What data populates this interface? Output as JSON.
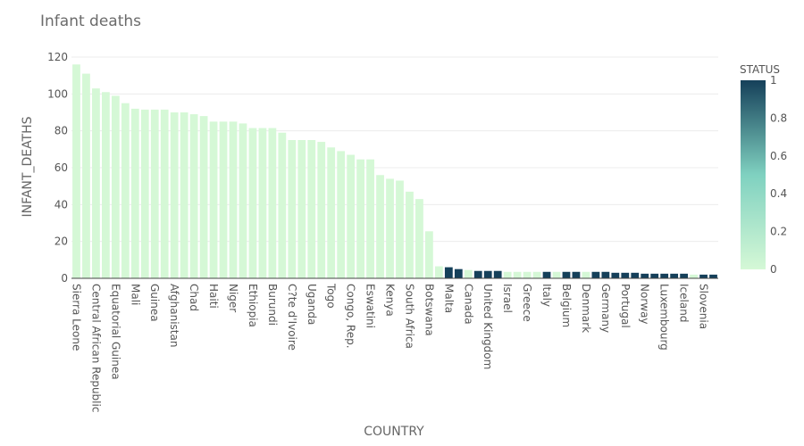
{
  "chart_data": {
    "type": "bar",
    "title": "Infant deaths",
    "xlabel": "COUNTRY",
    "ylabel": "INFANT_DEATHS",
    "ylim": [
      0,
      120
    ],
    "y_ticks": [
      0,
      20,
      40,
      60,
      80,
      100,
      120
    ],
    "grid": true,
    "colorbar": {
      "title": "STATUS",
      "range": [
        0,
        1
      ],
      "ticks": [
        "0",
        "0.2",
        "0.4",
        "0.6",
        "0.8",
        "1"
      ],
      "color_low": "#d5f8d6",
      "color_mid": "#7fd1c0",
      "color_high": "#15405a",
      "placement": "right"
    },
    "tick_labels": [
      "Sierra Leone",
      "Central African Republic",
      "Equatorial Guinea",
      "Mali",
      "Guinea",
      "Afghanistan",
      "Chad",
      "Haiti",
      "Niger",
      "Ethiopia",
      "Burundi",
      "C?te d'Ivoire",
      "Uganda",
      "Togo",
      "Congo, Rep.",
      "Eswatini",
      "Kenya",
      "South Africa",
      "Botswana",
      "Malta",
      "Canada",
      "United Kingdom",
      "Israel",
      "Greece",
      "Italy",
      "Belgium",
      "Denmark",
      "Germany",
      "Portugal",
      "Norway",
      "Luxembourg",
      "Iceland",
      "Slovenia"
    ],
    "tick_every": 2,
    "bar_count": 66,
    "values": [
      116,
      111,
      103,
      101,
      99,
      95,
      92,
      91.5,
      91.5,
      91.5,
      90,
      90,
      89,
      88,
      85,
      85,
      85,
      84,
      81.5,
      81.5,
      81.5,
      79,
      75,
      75,
      75,
      74,
      71,
      69,
      67,
      64.5,
      64.5,
      56,
      54,
      53,
      47,
      43,
      25.5,
      6.5,
      6,
      5,
      4.5,
      4,
      4,
      4,
      3.5,
      3.5,
      3.5,
      3.5,
      3.5,
      3.5,
      3.5,
      3.5,
      3.5,
      3.5,
      3.5,
      3,
      3,
      3,
      2.5,
      2.5,
      2.5,
      2.5,
      2.5,
      2,
      2,
      2
    ],
    "status": [
      0,
      0,
      0,
      0,
      0,
      0,
      0,
      0,
      0,
      0,
      0,
      0,
      0,
      0,
      0,
      0,
      0,
      0,
      0,
      0,
      0,
      0,
      0,
      0,
      0,
      0,
      0,
      0,
      0,
      0,
      0,
      0,
      0,
      0,
      0,
      0,
      0,
      0,
      1,
      1,
      0,
      1,
      1,
      1,
      0,
      0,
      0,
      0,
      1,
      0,
      1,
      1,
      0,
      1,
      1,
      1,
      1,
      1,
      1,
      1,
      1,
      1,
      1,
      0,
      1,
      1
    ]
  }
}
